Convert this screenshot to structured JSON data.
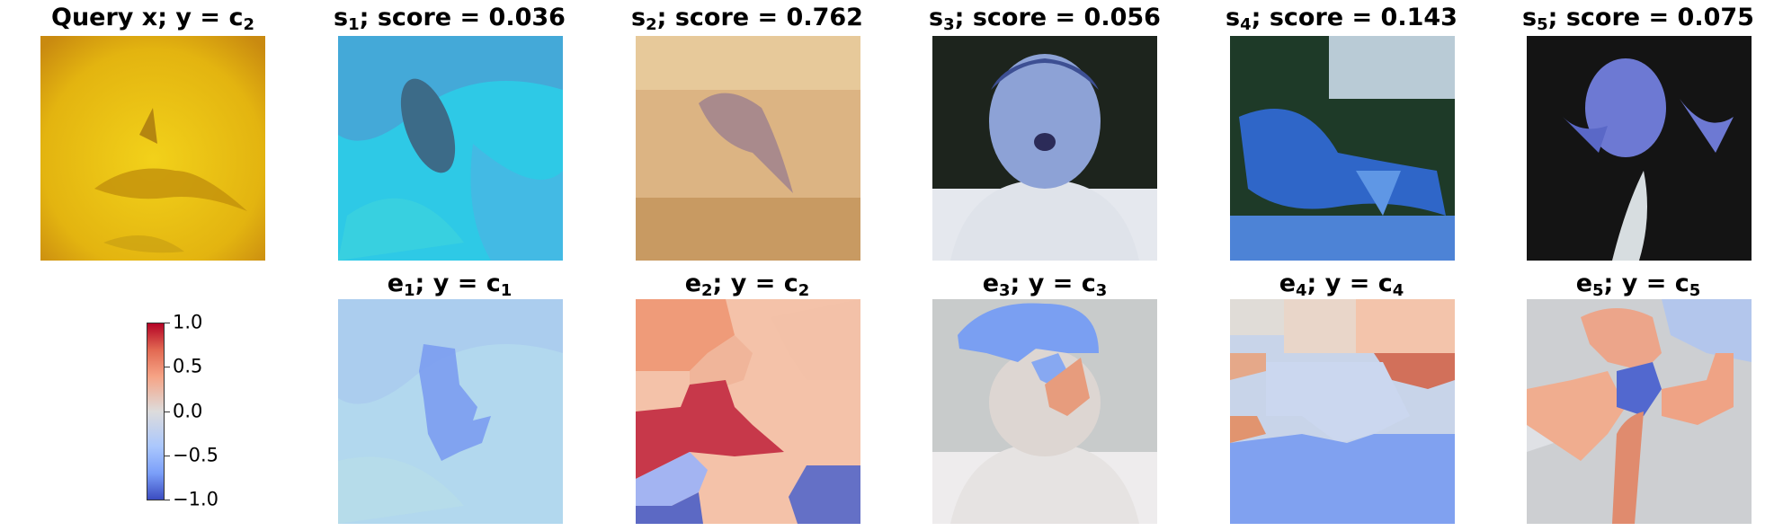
{
  "figure": {
    "query": {
      "text": "Query x; y = ",
      "sub": "2",
      "prefix_sub": ""
    },
    "score_titles": [
      {
        "name": "s",
        "sub": "1",
        "rest": "; score = 0.036"
      },
      {
        "name": "s",
        "sub": "2",
        "rest": "; score = 0.762"
      },
      {
        "name": "s",
        "sub": "3",
        "rest": "; score = 0.056"
      },
      {
        "name": "s",
        "sub": "4",
        "rest": "; score = 0.143"
      },
      {
        "name": "s",
        "sub": "5",
        "rest": "; score = 0.075"
      }
    ],
    "expl_titles": [
      {
        "name": "e",
        "sub": "1",
        "rest": "; y = c",
        "csub": "1"
      },
      {
        "name": "e",
        "sub": "2",
        "rest": "; y = c",
        "csub": "2"
      },
      {
        "name": "e",
        "sub": "3",
        "rest": "; y = c",
        "csub": "3"
      },
      {
        "name": "e",
        "sub": "4",
        "rest": "; y = c",
        "csub": "4"
      },
      {
        "name": "e",
        "sub": "5",
        "rest": "; y = c",
        "csub": "5"
      }
    ],
    "colorbar": {
      "colormap": "coolwarm",
      "ticks": [
        "1.0",
        "0.5",
        "0.0",
        "−0.5",
        "−1.0"
      ],
      "min": -1.0,
      "max": 1.0
    },
    "image_subjects": [
      "query-dolphin-icon",
      "sample-1-dolphin-icon",
      "sample-2-dolphin-icon",
      "sample-3-boy-icon",
      "sample-4-animal-icon",
      "sample-5-person-icon"
    ],
    "colors": {
      "blue": "#3b4cc0",
      "red": "#b40426",
      "neutral": "#dddddd"
    }
  }
}
